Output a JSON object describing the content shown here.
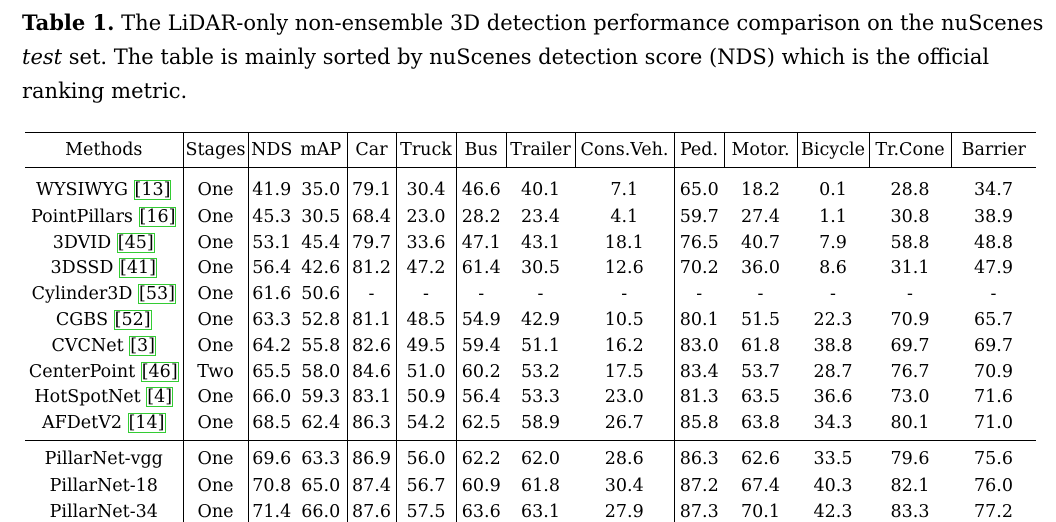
{
  "caption": {
    "label": "Table 1.",
    "text_before_italic": " The LiDAR-only non-ensemble 3D detection performance comparison on the nuScenes ",
    "italic": "test",
    "text_after_italic": " set. The table is mainly sorted by nuScenes detection score (NDS) which is the official ranking metric."
  },
  "table": {
    "headers": [
      "Methods",
      "Stages",
      "NDS",
      "mAP",
      "Car",
      "Truck",
      "Bus",
      "Trailer",
      "Cons.Veh.",
      "Ped.",
      "Motor.",
      "Bicycle",
      "Tr.Cone",
      "Barrier"
    ],
    "baseline_rows": [
      {
        "name": "WYSIWYG",
        "ref": "13",
        "cells": [
          "One",
          "41.9",
          "35.0",
          "79.1",
          "30.4",
          "46.6",
          "40.1",
          "7.1",
          "65.0",
          "18.2",
          "0.1",
          "28.8",
          "34.7"
        ]
      },
      {
        "name": "PointPillars",
        "ref": "16",
        "cells": [
          "One",
          "45.3",
          "30.5",
          "68.4",
          "23.0",
          "28.2",
          "23.4",
          "4.1",
          "59.7",
          "27.4",
          "1.1",
          "30.8",
          "38.9"
        ]
      },
      {
        "name": "3DVID",
        "ref": "45",
        "cells": [
          "One",
          "53.1",
          "45.4",
          "79.7",
          "33.6",
          "47.1",
          "43.1",
          "18.1",
          "76.5",
          "40.7",
          "7.9",
          "58.8",
          "48.8"
        ]
      },
      {
        "name": "3DSSD",
        "ref": "41",
        "cells": [
          "One",
          "56.4",
          "42.6",
          "81.2",
          "47.2",
          "61.4",
          "30.5",
          "12.6",
          "70.2",
          "36.0",
          "8.6",
          "31.1",
          "47.9"
        ]
      },
      {
        "name": "Cylinder3D",
        "ref": "53",
        "cells": [
          "One",
          "61.6",
          "50.6",
          "-",
          "-",
          "-",
          "-",
          "-",
          "-",
          "-",
          "-",
          "-",
          "-"
        ]
      },
      {
        "name": "CGBS",
        "ref": "52",
        "cells": [
          "One",
          "63.3",
          "52.8",
          "81.1",
          "48.5",
          "54.9",
          "42.9",
          "10.5",
          "80.1",
          "51.5",
          "22.3",
          "70.9",
          "65.7"
        ]
      },
      {
        "name": "CVCNet",
        "ref": "3",
        "cells": [
          "One",
          "64.2",
          "55.8",
          "82.6",
          "49.5",
          "59.4",
          "51.1",
          "16.2",
          "83.0",
          "61.8",
          "38.8",
          "69.7",
          "69.7"
        ]
      },
      {
        "name": "CenterPoint",
        "ref": "46",
        "cells": [
          "Two",
          "65.5",
          "58.0",
          "84.6",
          "51.0",
          "60.2",
          "53.2",
          "17.5",
          "83.4",
          "53.7",
          "28.7",
          "76.7",
          "70.9"
        ]
      },
      {
        "name": "HotSpotNet",
        "ref": "4",
        "cells": [
          "One",
          "66.0",
          "59.3",
          "83.1",
          "50.9",
          "56.4",
          "53.3",
          "23.0",
          "81.3",
          "63.5",
          "36.6",
          "73.0",
          "71.6"
        ]
      },
      {
        "name": "AFDetV2",
        "ref": "14",
        "cells": [
          "One",
          "68.5",
          "62.4",
          "86.3",
          "54.2",
          "62.5",
          "58.9",
          "26.7",
          "85.8",
          "63.8",
          "34.3",
          "80.1",
          "71.0"
        ]
      }
    ],
    "ours_rows": [
      {
        "name": "PillarNet-vgg",
        "cells": [
          "One",
          "69.6",
          "63.3",
          "86.9",
          "56.0",
          "62.2",
          "62.0",
          "28.6",
          "86.3",
          "62.6",
          "33.5",
          "79.6",
          "75.6"
        ],
        "bold": [
          false,
          false,
          false,
          false,
          false,
          false,
          false,
          false,
          false,
          false,
          false,
          false,
          false
        ]
      },
      {
        "name": "PillarNet-18",
        "cells": [
          "One",
          "70.8",
          "65.0",
          "87.4",
          "56.7",
          "60.9",
          "61.8",
          "30.4",
          "87.2",
          "67.4",
          "40.3",
          "82.1",
          "76.0"
        ],
        "bold": [
          false,
          false,
          false,
          false,
          false,
          false,
          false,
          true,
          false,
          false,
          false,
          false,
          false
        ]
      },
      {
        "name": "PillarNet-34",
        "cells": [
          "One",
          "71.4",
          "66.0",
          "87.6",
          "57.5",
          "63.6",
          "63.1",
          "27.9",
          "87.3",
          "70.1",
          "42.3",
          "83.3",
          "77.2"
        ],
        "bold": [
          false,
          true,
          true,
          true,
          true,
          true,
          true,
          false,
          true,
          true,
          true,
          true,
          true
        ]
      }
    ]
  },
  "colors": {
    "citation_box": "#33cc33",
    "text": "#000000",
    "background": "#ffffff"
  }
}
